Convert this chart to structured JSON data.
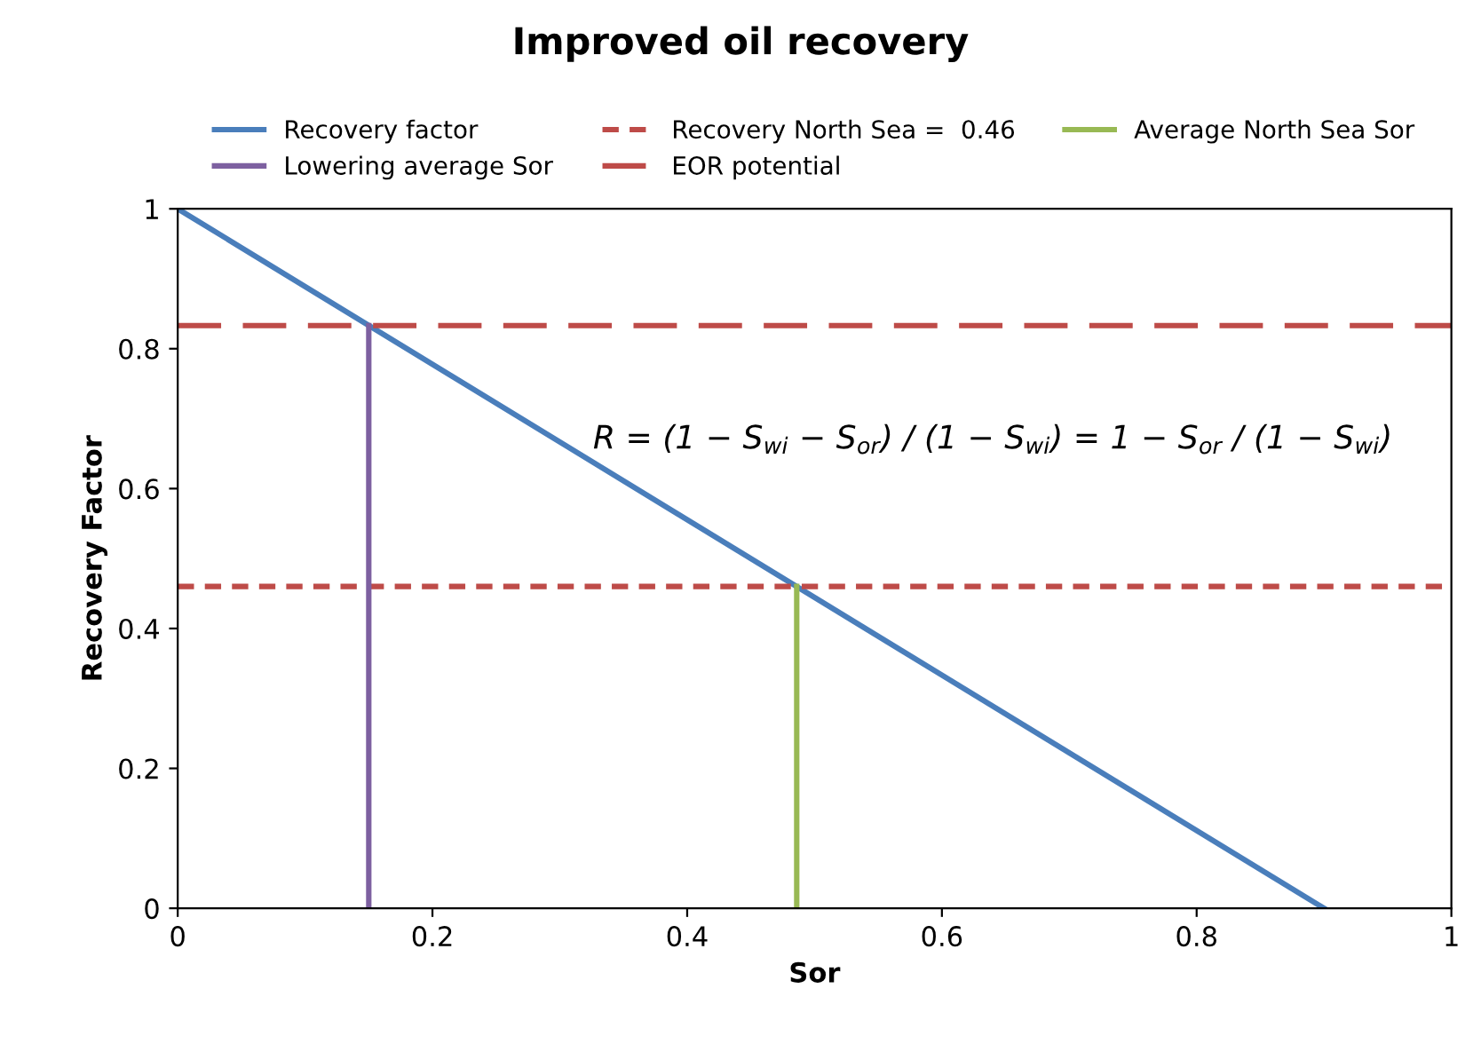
{
  "chart_data": {
    "type": "line",
    "title": "Improved oil recovery",
    "xlabel": "Sor",
    "ylabel": "Recovery Factor",
    "series": [
      {
        "name": "Recovery factor",
        "color": "#4a7ebb",
        "x": [
          0,
          0.9
        ],
        "values": [
          1,
          0
        ],
        "line_style": "solid"
      },
      {
        "name": "Recovery North Sea =  0.46",
        "color": "#be4b48",
        "x": [
          0,
          1
        ],
        "values": [
          0.46,
          0.46
        ],
        "line_style": "dotted"
      },
      {
        "name": "Average North Sea Sor",
        "color": "#98b954",
        "x": [
          0.486,
          0.486
        ],
        "values": [
          0,
          0.46
        ],
        "line_style": "solid"
      },
      {
        "name": "Lowering average Sor",
        "color": "#7d60a0",
        "x": [
          0.15,
          0.15
        ],
        "values": [
          0,
          0.833
        ],
        "line_style": "solid"
      },
      {
        "name": "EOR potential",
        "color": "#be4b48",
        "x": [
          0,
          1
        ],
        "values": [
          0.833,
          0.833
        ],
        "line_style": "dashed"
      }
    ],
    "annotations": [
      "R = (1 − S$_{wi}$ − S$_{or}$) / (1 − S$_{wi}$) = 1 − S$_{or}$ / (1 − S$_{wi}$)"
    ],
    "xlim": [
      0,
      1
    ],
    "ylim": [
      0,
      1
    ],
    "xticks": [
      0,
      0.2,
      0.4,
      0.6,
      0.8,
      1
    ],
    "yticks": [
      0,
      0.2,
      0.4,
      0.6,
      0.8,
      1
    ],
    "grid": false,
    "legend": "top",
    "marker": "none"
  }
}
